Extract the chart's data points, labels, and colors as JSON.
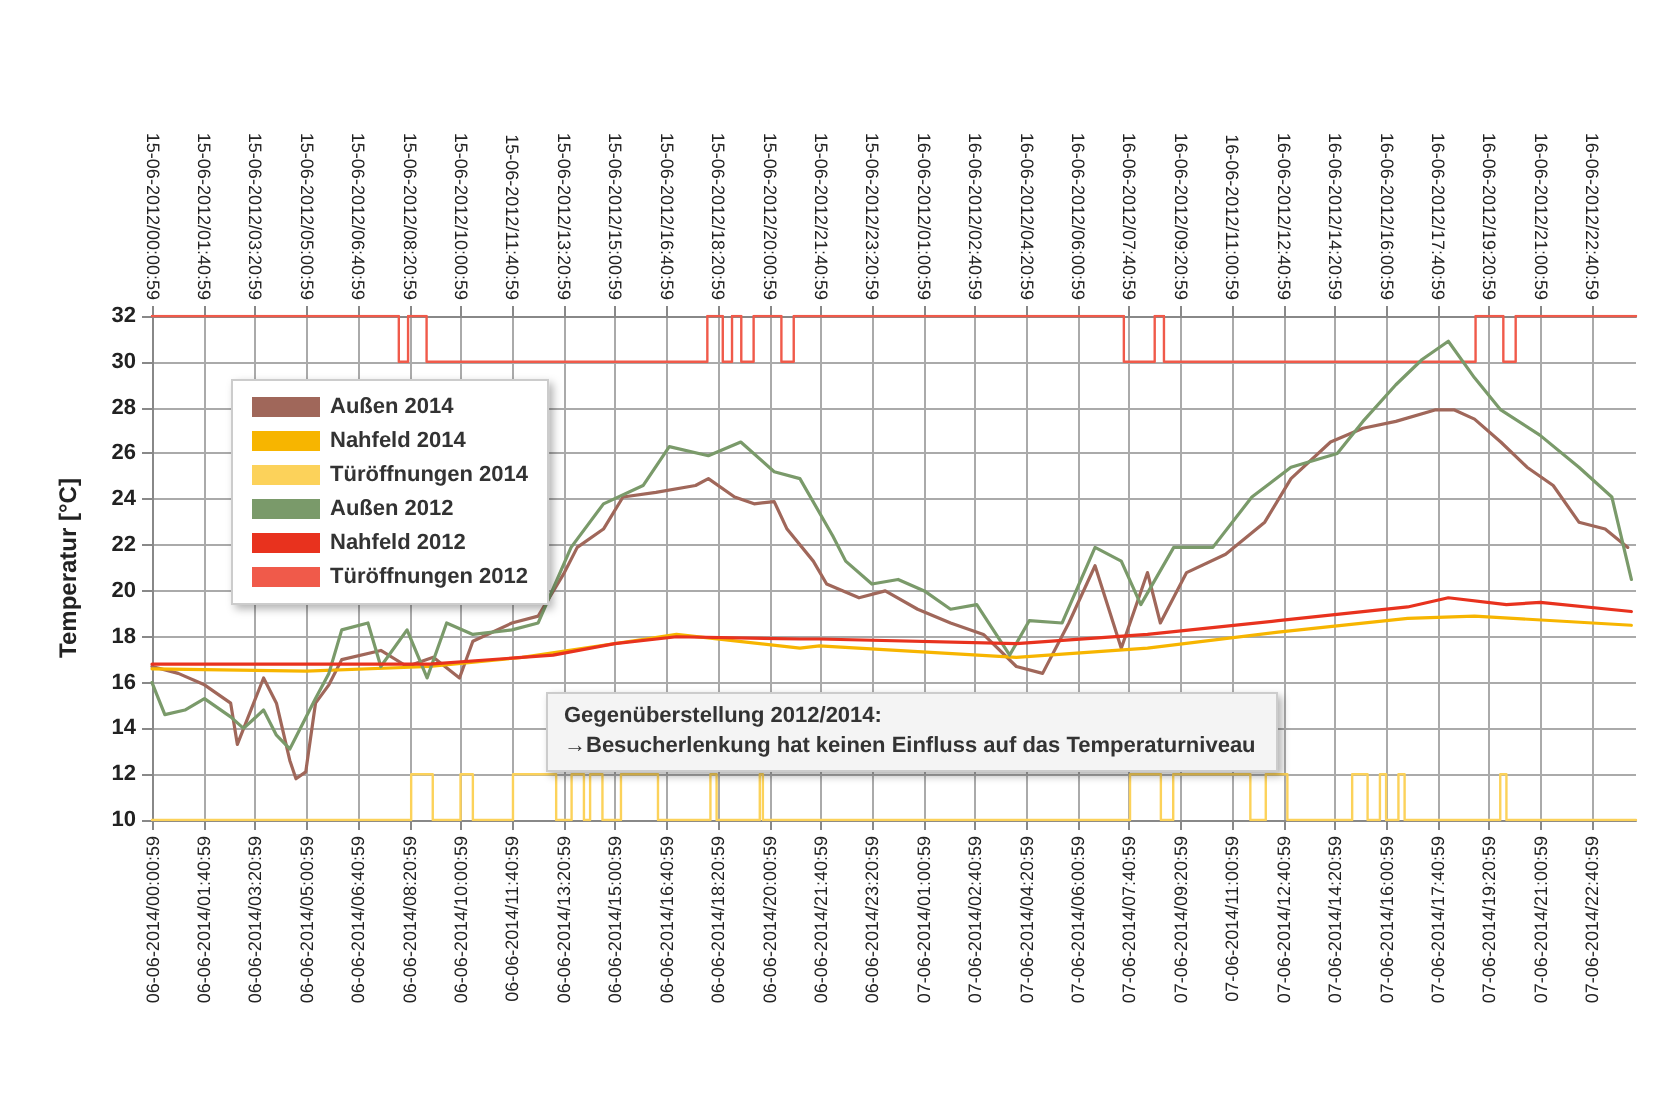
{
  "chart_data": {
    "type": "line",
    "ylabel": "Temperatur [°C]",
    "xlim": [
      "2014-06-06T00:00",
      "2014-06-08T00:06"
    ],
    "xticks": [
      {
        "value": "2014-06-06T00:00:59",
        "label": "06-06-2014/00:00:59"
      },
      {
        "value": "2014-06-06T01:40:59",
        "label": "06-06-2014/01:40:59"
      },
      {
        "value": "2014-06-06T03:20:59",
        "label": "06-06-2014/03:20:59"
      },
      {
        "value": "2014-06-06T05:00:59",
        "label": "06-06-2014/05:00:59"
      },
      {
        "value": "2014-06-06T06:40:59",
        "label": "06-06-2014/06:40:59"
      },
      {
        "value": "2014-06-06T08:20:59",
        "label": "06-06-2014/08:20:59"
      },
      {
        "value": "2014-06-06T10:00:59",
        "label": "06-06-2014/10:00:59"
      },
      {
        "value": "2014-06-06T11:40:59",
        "label": "06-06-2014/11:40:59"
      },
      {
        "value": "2014-06-06T13:20:59",
        "label": "06-06-2014/13:20:59"
      },
      {
        "value": "2014-06-06T15:00:59",
        "label": "06-06-2014/15:00:59"
      },
      {
        "value": "2014-06-06T16:40:59",
        "label": "06-06-2014/16:40:59"
      },
      {
        "value": "2014-06-06T18:20:59",
        "label": "06-06-2014/18:20:59"
      },
      {
        "value": "2014-06-06T20:00:59",
        "label": "06-06-2014/20:00:59"
      },
      {
        "value": "2014-06-06T21:40:59",
        "label": "06-06-2014/21:40:59"
      },
      {
        "value": "2014-06-06T23:20:59",
        "label": "06-06-2014/23:20:59"
      },
      {
        "value": "2014-06-07T01:00:59",
        "label": "07-06-2014/01:00:59"
      },
      {
        "value": "2014-06-07T02:40:59",
        "label": "07-06-2014/02:40:59"
      },
      {
        "value": "2014-06-07T04:20:59",
        "label": "07-06-2014/04:20:59"
      },
      {
        "value": "2014-06-07T06:00:59",
        "label": "07-06-2014/06:00:59"
      },
      {
        "value": "2014-06-07T07:40:59",
        "label": "07-06-2014/07:40:59"
      },
      {
        "value": "2014-06-07T09:20:59",
        "label": "07-06-2014/09:20:59"
      },
      {
        "value": "2014-06-07T11:00:59",
        "label": "07-06-2014/11:00:59"
      },
      {
        "value": "2014-06-07T12:40:59",
        "label": "07-06-2014/12:40:59"
      },
      {
        "value": "2014-06-07T14:20:59",
        "label": "07-06-2014/14:20:59"
      },
      {
        "value": "2014-06-07T16:00:59",
        "label": "07-06-2014/16:00:59"
      },
      {
        "value": "2014-06-07T17:40:59",
        "label": "07-06-2014/17:40:59"
      },
      {
        "value": "2014-06-07T19:20:59",
        "label": "07-06-2014/19:20:59"
      },
      {
        "value": "2014-06-07T21:00:59",
        "label": "07-06-2014/21:00:59"
      },
      {
        "value": "2014-06-07T22:40:59",
        "label": "07-06-2014/22:40:59"
      }
    ],
    "x2lim": [
      "2012-06-15T00:00",
      "2012-06-17T00:06"
    ],
    "x2ticks": [
      {
        "value": "2012-06-15T00:00:59",
        "label": "15-06-2012/00:00:59"
      },
      {
        "value": "2012-06-15T01:40:59",
        "label": "15-06-2012/01:40:59"
      },
      {
        "value": "2012-06-15T03:20:59",
        "label": "15-06-2012/03:20:59"
      },
      {
        "value": "2012-06-15T05:00:59",
        "label": "15-06-2012/05:00:59"
      },
      {
        "value": "2012-06-15T06:40:59",
        "label": "15-06-2012/06:40:59"
      },
      {
        "value": "2012-06-15T08:20:59",
        "label": "15-06-2012/08:20:59"
      },
      {
        "value": "2012-06-15T10:00:59",
        "label": "15-06-2012/10:00:59"
      },
      {
        "value": "2012-06-15T11:40:59",
        "label": "15-06-2012/11:40:59"
      },
      {
        "value": "2012-06-15T13:20:59",
        "label": "15-06-2012/13:20:59"
      },
      {
        "value": "2012-06-15T15:00:59",
        "label": "15-06-2012/15:00:59"
      },
      {
        "value": "2012-06-15T16:40:59",
        "label": "15-06-2012/16:40:59"
      },
      {
        "value": "2012-06-15T18:20:59",
        "label": "15-06-2012/18:20:59"
      },
      {
        "value": "2012-06-15T20:00:59",
        "label": "15-06-2012/20:00:59"
      },
      {
        "value": "2012-06-15T21:40:59",
        "label": "15-06-2012/21:40:59"
      },
      {
        "value": "2012-06-15T23:20:59",
        "label": "15-06-2012/23:20:59"
      },
      {
        "value": "2012-06-16T01:00:59",
        "label": "16-06-2012/01:00:59"
      },
      {
        "value": "2012-06-16T02:40:59",
        "label": "16-06-2012/02:40:59"
      },
      {
        "value": "2012-06-16T04:20:59",
        "label": "16-06-2012/04:20:59"
      },
      {
        "value": "2012-06-16T06:00:59",
        "label": "16-06-2012/06:00:59"
      },
      {
        "value": "2012-06-16T07:40:59",
        "label": "16-06-2012/07:40:59"
      },
      {
        "value": "2012-06-16T09:20:59",
        "label": "16-06-2012/09:20:59"
      },
      {
        "value": "2012-06-16T11:00:59",
        "label": "16-06-2012/11:00:59"
      },
      {
        "value": "2012-06-16T12:40:59",
        "label": "16-06-2012/12:40:59"
      },
      {
        "value": "2012-06-16T14:20:59",
        "label": "16-06-2012/14:20:59"
      },
      {
        "value": "2012-06-16T16:00:59",
        "label": "16-06-2012/16:00:59"
      },
      {
        "value": "2012-06-16T17:40:59",
        "label": "16-06-2012/17:40:59"
      },
      {
        "value": "2012-06-16T19:20:59",
        "label": "16-06-2012/19:20:59"
      },
      {
        "value": "2012-06-16T21:00:59",
        "label": "16-06-2012/21:00:59"
      },
      {
        "value": "2012-06-16T22:40:59",
        "label": "16-06-2012/22:40:59"
      }
    ],
    "ylim": [
      10,
      32
    ],
    "yticks": [
      10,
      12,
      14,
      16,
      18,
      20,
      22,
      24,
      26,
      28,
      30,
      32
    ],
    "grid": true,
    "legend": "top left",
    "marker": "none",
    "line_style": "solid",
    "annotations": [
      "Gegenüberstellung 2012/2014:",
      "→Besucherlenkung hat keinen Einfluss auf das Temperaturniveau"
    ],
    "series": [
      {
        "name": "Außen 2014",
        "color": "#a0675a",
        "x": [
          "2014-06-06T00:00",
          "2014-06-06T00:51",
          "2014-06-06T01:42",
          "2014-06-06T02:33",
          "2014-06-06T02:46",
          "2014-06-06T03:37",
          "2014-06-06T04:02",
          "2014-06-06T04:28",
          "2014-06-06T04:40",
          "2014-06-06T04:59",
          "2014-06-06T05:18",
          "2014-06-06T05:44",
          "2014-06-06T06:09",
          "2014-06-06T07:25",
          "2014-06-06T08:16",
          "2014-06-06T09:07",
          "2014-06-06T09:58",
          "2014-06-06T10:24",
          "2014-06-06T11:40",
          "2014-06-06T12:31",
          "2014-06-06T13:22",
          "2014-06-06T13:47",
          "2014-06-06T14:38",
          "2014-06-06T15:16",
          "2014-06-06T16:20",
          "2014-06-06T17:37",
          "2014-06-06T18:02",
          "2014-06-06T18:53",
          "2014-06-06T19:31",
          "2014-06-06T20:10",
          "2014-06-06T20:35",
          "2014-06-06T21:26",
          "2014-06-06T21:52",
          "2014-06-06T22:55",
          "2014-06-06T23:46",
          "2014-06-07T00:49",
          "2014-06-07T01:53",
          "2014-06-07T02:57",
          "2014-06-07T04:01",
          "2014-06-07T04:52",
          "2014-06-07T05:43",
          "2014-06-07T06:34",
          "2014-06-07T07:25",
          "2014-06-07T08:16",
          "2014-06-07T08:41",
          "2014-06-07T09:32",
          "2014-06-07T10:48",
          "2014-06-07T12:04",
          "2014-06-07T12:55",
          "2014-06-07T14:12",
          "2014-06-07T15:15",
          "2014-06-07T16:19",
          "2014-06-07T17:35",
          "2014-06-07T18:13",
          "2014-06-07T18:52",
          "2014-06-07T19:43",
          "2014-06-07T20:34",
          "2014-06-07T21:25",
          "2014-06-07T22:15",
          "2014-06-07T23:06",
          "2014-06-07T23:50"
        ],
        "values": [
          16.7,
          16.4,
          15.9,
          15.1,
          13.3,
          16.2,
          15.1,
          12.6,
          11.8,
          12.1,
          15.1,
          15.9,
          17.0,
          17.4,
          16.7,
          17.1,
          16.2,
          17.8,
          18.6,
          18.9,
          20.8,
          21.9,
          22.7,
          24.1,
          24.3,
          24.6,
          24.9,
          24.1,
          23.8,
          23.9,
          22.7,
          21.3,
          20.3,
          19.7,
          20.0,
          19.2,
          18.6,
          18.1,
          16.7,
          16.4,
          18.6,
          21.1,
          17.5,
          20.8,
          18.6,
          20.8,
          21.6,
          23.0,
          24.9,
          26.5,
          27.1,
          27.4,
          27.9,
          27.9,
          27.5,
          26.5,
          25.4,
          24.6,
          23.0,
          22.7,
          21.9
        ]
      },
      {
        "name": "Nahfeld 2014",
        "color": "#f7b500",
        "x": [
          "2014-06-06T00:00",
          "2014-06-06T05:00",
          "2014-06-06T09:00",
          "2014-06-06T12:00",
          "2014-06-06T16:00",
          "2014-06-06T17:00",
          "2014-06-06T21:00",
          "2014-06-06T21:38",
          "2014-06-07T04:01",
          "2014-06-07T08:16",
          "2014-06-07T12:30",
          "2014-06-07T16:42",
          "2014-06-07T18:52",
          "2014-06-07T23:57"
        ],
        "values": [
          16.6,
          16.5,
          16.7,
          17.1,
          17.9,
          18.1,
          17.5,
          17.6,
          17.1,
          17.5,
          18.2,
          18.8,
          18.9,
          18.5
        ]
      },
      {
        "name": "Türöffnungen 2014",
        "type": "step",
        "color": "#fcd25a",
        "x": [
          "2014-06-06T00:00",
          "2014-06-06T08:24",
          "2014-06-06T09:06",
          "2014-06-06T10:00",
          "2014-06-06T10:24",
          "2014-06-06T11:42",
          "2014-06-06T13:06",
          "2014-06-06T13:36",
          "2014-06-06T14:00",
          "2014-06-06T14:12",
          "2014-06-06T14:36",
          "2014-06-06T15:12",
          "2014-06-06T16:24",
          "2014-06-06T18:06",
          "2014-06-06T18:18",
          "2014-06-06T19:42",
          "2014-06-06T19:48",
          "2014-06-07T07:42",
          "2014-06-07T08:42",
          "2014-06-07T09:06",
          "2014-06-07T11:36",
          "2014-06-07T12:06",
          "2014-06-07T12:48",
          "2014-06-07T14:54",
          "2014-06-07T15:24",
          "2014-06-07T15:48",
          "2014-06-07T16:00",
          "2014-06-07T16:24",
          "2014-06-07T16:36",
          "2014-06-07T19:42",
          "2014-06-07T19:54",
          "2014-06-08T00:06"
        ],
        "values": [
          10,
          12,
          10,
          12,
          10,
          12,
          10,
          12,
          10,
          12,
          10,
          12,
          10,
          12,
          10,
          12,
          10,
          12,
          10,
          12,
          10,
          12,
          10,
          12,
          10,
          12,
          10,
          12,
          10,
          12,
          10,
          10
        ]
      },
      {
        "name": "Außen 2012",
        "axis": "x2",
        "color": "#7a9a6a",
        "x": [
          "2012-06-15T00:00",
          "2012-06-15T00:25",
          "2012-06-15T01:04",
          "2012-06-15T01:42",
          "2012-06-15T02:33",
          "2012-06-15T02:58",
          "2012-06-15T03:37",
          "2012-06-15T04:02",
          "2012-06-15T04:28",
          "2012-06-15T04:53",
          "2012-06-15T05:18",
          "2012-06-15T05:44",
          "2012-06-15T06:09",
          "2012-06-15T07:00",
          "2012-06-15T07:25",
          "2012-06-15T08:16",
          "2012-06-15T08:55",
          "2012-06-15T09:33",
          "2012-06-15T10:24",
          "2012-06-15T11:40",
          "2012-06-15T12:31",
          "2012-06-15T13:35",
          "2012-06-15T14:38",
          "2012-06-15T15:55",
          "2012-06-15T16:46",
          "2012-06-15T18:02",
          "2012-06-15T19:05",
          "2012-06-15T20:10",
          "2012-06-15T21:00",
          "2012-06-15T22:04",
          "2012-06-15T22:29",
          "2012-06-15T23:20",
          "2012-06-16T00:11",
          "2012-06-16T01:02",
          "2012-06-16T01:53",
          "2012-06-16T02:44",
          "2012-06-16T03:48",
          "2012-06-16T04:26",
          "2012-06-16T05:30",
          "2012-06-16T06:34",
          "2012-06-16T07:25",
          "2012-06-16T08:03",
          "2012-06-16T09:07",
          "2012-06-16T10:23",
          "2012-06-16T11:39",
          "2012-06-16T12:55",
          "2012-06-16T14:25",
          "2012-06-16T15:15",
          "2012-06-16T16:19",
          "2012-06-16T17:10",
          "2012-06-16T18:01",
          "2012-06-16T18:52",
          "2012-06-16T19:43",
          "2012-06-16T20:59",
          "2012-06-16T22:15",
          "2012-06-16T23:19",
          "2012-06-16T23:57"
        ],
        "values": [
          16.0,
          14.6,
          14.8,
          15.3,
          14.5,
          14.0,
          14.8,
          13.7,
          13.1,
          14.2,
          15.3,
          16.4,
          18.3,
          18.6,
          16.7,
          18.3,
          16.2,
          18.6,
          18.1,
          18.3,
          18.6,
          21.9,
          23.8,
          24.6,
          26.3,
          25.9,
          26.5,
          25.2,
          24.9,
          22.4,
          21.3,
          20.3,
          20.5,
          20.0,
          19.2,
          19.4,
          17.2,
          18.7,
          18.6,
          21.9,
          21.3,
          19.4,
          21.9,
          21.9,
          24.1,
          25.4,
          26.0,
          27.4,
          29.0,
          30.1,
          30.9,
          29.3,
          27.9,
          26.8,
          25.4,
          24.1,
          20.5
        ]
      },
      {
        "name": "Nahfeld 2012",
        "axis": "x2",
        "color": "#e8321e",
        "x": [
          "2012-06-15T00:00",
          "2012-06-15T09:00",
          "2012-06-15T13:00",
          "2012-06-15T15:00",
          "2012-06-15T17:00",
          "2012-06-15T21:00",
          "2012-06-15T21:38",
          "2012-06-16T04:01",
          "2012-06-16T08:16",
          "2012-06-16T12:30",
          "2012-06-16T16:42",
          "2012-06-16T18:01",
          "2012-06-16T19:54",
          "2012-06-16T21:00",
          "2012-06-16T23:57"
        ],
        "values": [
          16.8,
          16.8,
          17.2,
          17.7,
          18.0,
          17.9,
          17.9,
          17.7,
          18.1,
          18.7,
          19.3,
          19.7,
          19.4,
          19.5,
          19.1
        ]
      },
      {
        "name": "Türöffnungen 2012",
        "type": "step",
        "axis": "x2",
        "color": "#f05a4a",
        "x": [
          "2012-06-15T00:00",
          "2012-06-15T08:00",
          "2012-06-15T08:18",
          "2012-06-15T08:54",
          "2012-06-15T18:00",
          "2012-06-15T18:30",
          "2012-06-15T18:48",
          "2012-06-15T19:06",
          "2012-06-15T19:30",
          "2012-06-15T20:24",
          "2012-06-15T20:48",
          "2012-06-16T07:30",
          "2012-06-16T08:30",
          "2012-06-16T08:48",
          "2012-06-16T18:54",
          "2012-06-16T19:48",
          "2012-06-16T20:12",
          "2012-06-17T00:06"
        ],
        "values": [
          32,
          30,
          32,
          30,
          32,
          30,
          32,
          30,
          32,
          30,
          32,
          30,
          32,
          30,
          32,
          30,
          32,
          32
        ]
      }
    ]
  }
}
